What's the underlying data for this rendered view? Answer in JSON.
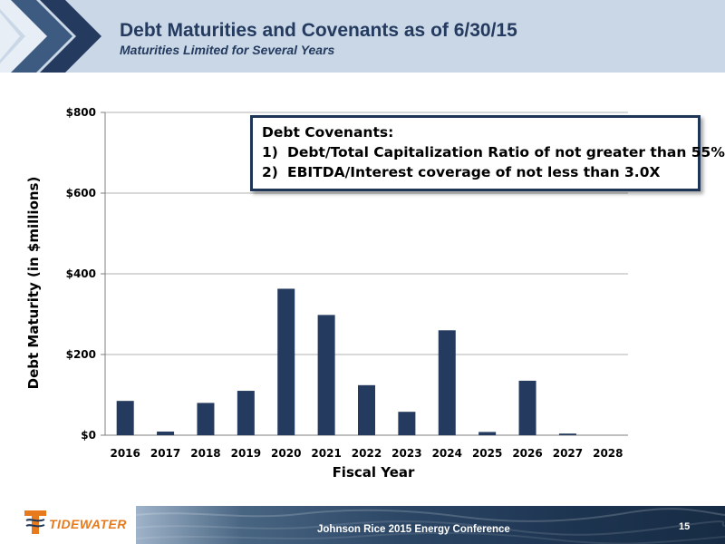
{
  "header": {
    "title": "Debt Maturities and Covenants as of 6/30/15",
    "subtitle": "Maturities Limited for Several Years"
  },
  "covenants": {
    "title": "Debt Covenants:",
    "items": [
      {
        "num": "1)",
        "text": "Debt/Total Capitalization Ratio of not greater than 55%"
      },
      {
        "num": "2)",
        "text": "EBITDA/Interest coverage of not less than 3.0X"
      }
    ]
  },
  "chart_data": {
    "type": "bar",
    "title": "",
    "xlabel": "Fiscal Year",
    "ylabel": "Debt Maturity (in $millions)",
    "categories": [
      "2016",
      "2017",
      "2018",
      "2019",
      "2020",
      "2021",
      "2022",
      "2023",
      "2024",
      "2025",
      "2026",
      "2027",
      "2028"
    ],
    "values": [
      85,
      9,
      80,
      110,
      363,
      298,
      124,
      58,
      260,
      8,
      135,
      4,
      0
    ],
    "ylim": [
      0,
      800
    ],
    "yticks": [
      0,
      200,
      400,
      600,
      800
    ],
    "ytick_labels": [
      "$0",
      "$200",
      "$400",
      "$600",
      "$800"
    ],
    "grid": true,
    "bar_color": "#243a5e"
  },
  "footer": {
    "logo_text": "TIDEWATER",
    "conference": "Johnson Rice 2015 Energy Conference",
    "page_number": "15"
  }
}
